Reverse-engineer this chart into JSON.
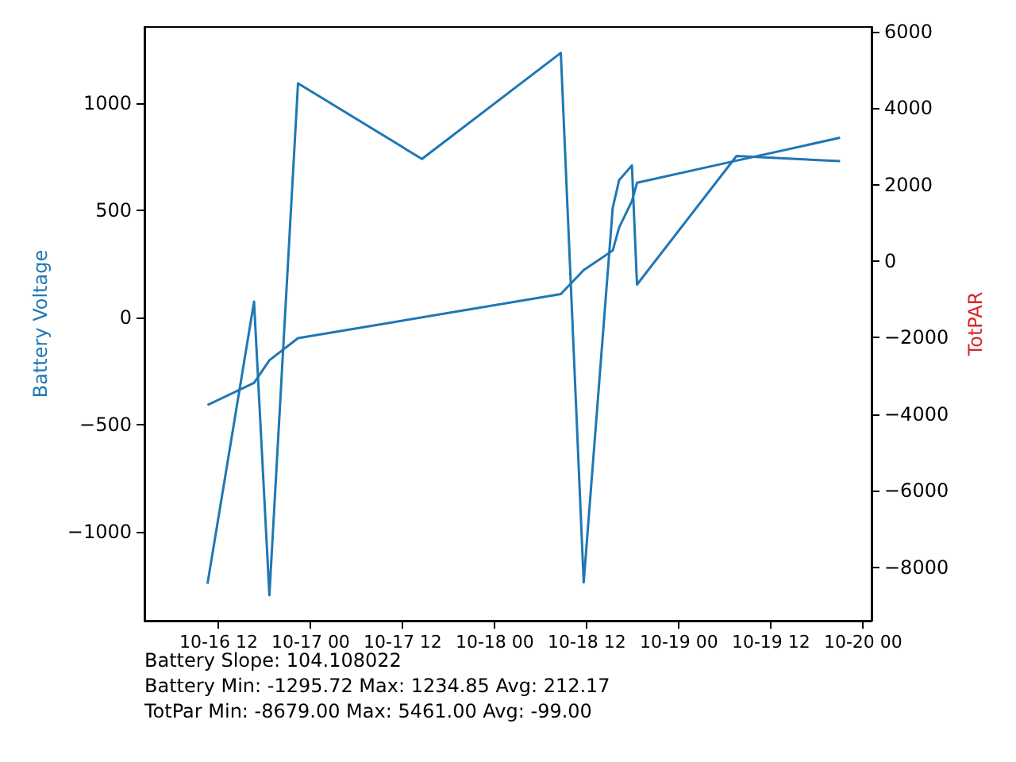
{
  "chart_data": {
    "type": "line",
    "x": [
      "--10-16T10:33",
      "--10-16T16:37",
      "--10-16T18:37",
      "--10-16T22:21",
      "--10-17T14:30",
      "--10-18T08:36",
      "--10-18T11:35",
      "--10-18T15:22",
      "--10-18T16:12",
      "--10-18T17:52",
      "--10-18T18:32",
      "--10-19T07:30",
      "--10-19T21:00"
    ],
    "series": [
      {
        "color": "#1f77b4",
        "values": [
          -1243,
          74,
          -1296,
          1093,
          740,
          1235,
          -1236,
          512,
          641,
          710,
          154,
          754,
          730
        ]
      },
      {
        "color": "#1f77b4",
        "axis": "y2",
        "x": [
          "--10-16T10:33",
          "--10-16T16:37",
          "--10-16T18:37",
          "--10-16T22:21",
          "--10-18T08:36",
          "--10-18T11:35",
          "--10-18T15:22",
          "--10-18T16:12",
          "--10-18T17:52",
          "--10-18T18:32",
          "--10-19T07:30",
          "--10-19T21:00"
        ],
        "values": [
          -3760,
          -3180,
          -2590,
          -2010,
          -860,
          -230,
          280,
          880,
          1570,
          2050,
          2630,
          3230
        ]
      }
    ],
    "ylabel": "Battery Voltage",
    "y2label": "TotPAR",
    "xlim": [
      "--10-16T02:20",
      "--10-20T01:06"
    ],
    "xticks": [
      {
        "value": "--10-16T12:00",
        "label": "10-16 12"
      },
      {
        "value": "--10-17T00:00",
        "label": "10-17 00"
      },
      {
        "value": "--10-17T12:00",
        "label": "10-17 12"
      },
      {
        "value": "--10-18T00:00",
        "label": "10-18 00"
      },
      {
        "value": "--10-18T12:00",
        "label": "10-18 12"
      },
      {
        "value": "--10-19T00:00",
        "label": "10-19 00"
      },
      {
        "value": "--10-19T12:00",
        "label": "10-19 12"
      },
      {
        "value": "--10-20T00:00",
        "label": "10-20 00"
      }
    ],
    "ylim": [
      -1415,
      1356
    ],
    "yticks": [
      {
        "value": -1000,
        "label": "−1000"
      },
      {
        "value": -500,
        "label": "−500"
      },
      0,
      500,
      1000
    ],
    "y2lim": [
      -9400,
      6125
    ],
    "y2ticks": [
      {
        "value": -8000,
        "label": "−8000"
      },
      {
        "value": -6000,
        "label": "−6000"
      },
      {
        "value": -4000,
        "label": "−4000"
      },
      {
        "value": -2000,
        "label": "−2000"
      },
      0,
      2000,
      4000,
      6000
    ],
    "annotations": [
      "Battery Slope: 104.108022",
      "Battery Min: -1295.72 Max: 1234.85 Avg: 212.17",
      "TotPar Min: -8679.00 Max: 5461.00 Avg: -99.00"
    ],
    "grid": false,
    "marker": "none"
  }
}
